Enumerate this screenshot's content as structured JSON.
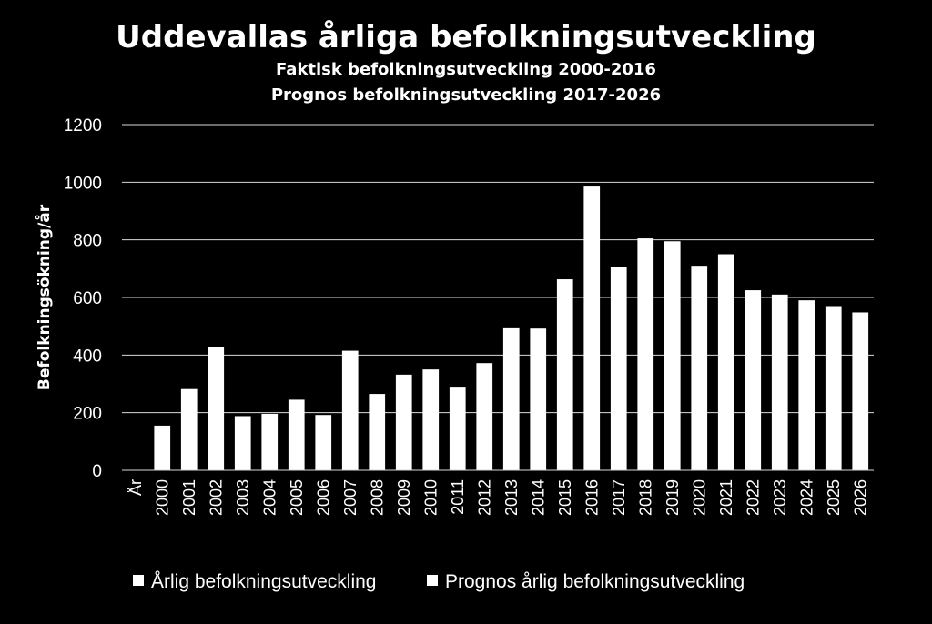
{
  "chart_data": {
    "type": "bar",
    "title": "Uddevallas årliga befolkningsutveckling",
    "subtitle_lines": [
      "Faktisk befolkningsutveckling  2000-2016",
      "Prognos befolkningsutveckling 2017-2026"
    ],
    "ylabel": "Befolkningsökning/år",
    "xlabel": "År",
    "ylim": [
      0,
      1200
    ],
    "yticks": [
      0,
      200,
      400,
      600,
      800,
      1000,
      1200
    ],
    "grid": true,
    "legend_position": "bottom",
    "categories": [
      "2000",
      "2001",
      "2002",
      "2003",
      "2004",
      "2005",
      "2006",
      "2007",
      "2008",
      "2009",
      "2010",
      "2011",
      "2012",
      "2013",
      "2014",
      "2015",
      "2016",
      "2017",
      "2018",
      "2019",
      "2020",
      "2021",
      "2022",
      "2023",
      "2024",
      "2025",
      "2026"
    ],
    "series": [
      {
        "name": "Årlig befolkningsutveckling",
        "color": "#ffffff",
        "values": [
          155,
          282,
          428,
          188,
          196,
          245,
          192,
          415,
          265,
          332,
          350,
          287,
          372,
          493,
          492,
          663,
          985,
          null,
          null,
          null,
          null,
          null,
          null,
          null,
          null,
          null,
          null
        ]
      },
      {
        "name": "Prognos årlig befolkningsutveckling",
        "color": "#ffffff",
        "values": [
          null,
          null,
          null,
          null,
          null,
          null,
          null,
          null,
          null,
          null,
          null,
          null,
          null,
          null,
          null,
          null,
          null,
          705,
          805,
          795,
          710,
          750,
          625,
          610,
          590,
          570,
          548
        ]
      }
    ]
  }
}
